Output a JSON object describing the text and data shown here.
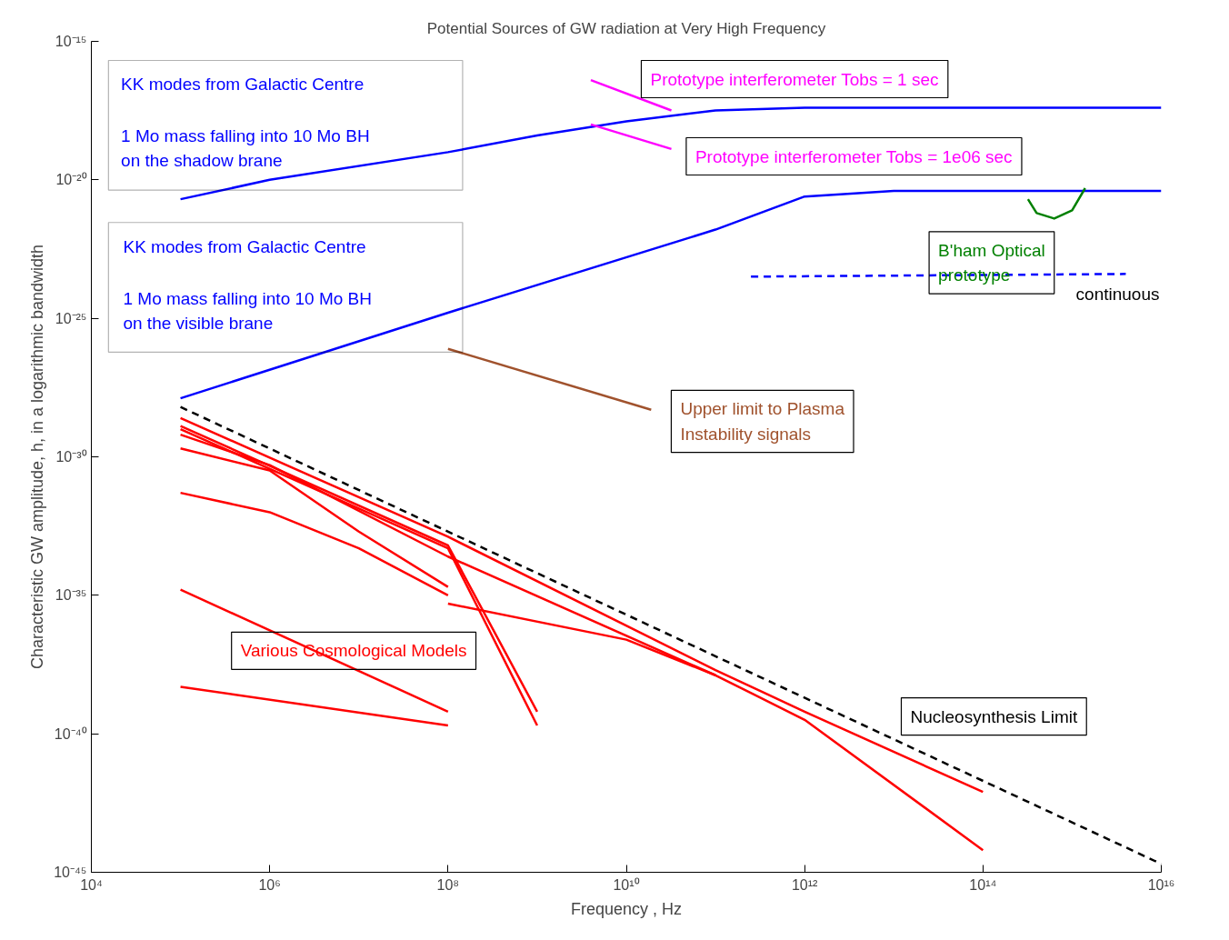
{
  "chart_data": {
    "type": "line",
    "title": "Potential Sources of GW radiation at Very High Frequency",
    "xlabel": "Frequency , Hz",
    "ylabel": "Characteristic GW amplitude, h, in a logarithmic bandwidth",
    "log": "xy",
    "grid": false,
    "line_style": "solid",
    "marker": "none",
    "xlim": [
      10000.0,
      1e+16
    ],
    "ylim": [
      1e-45,
      1e-15
    ],
    "xticks": [
      {
        "value": 10000.0,
        "label": "10⁴"
      },
      {
        "value": 1000000.0,
        "label": "10⁶"
      },
      {
        "value": 100000000.0,
        "label": "10⁸"
      },
      {
        "value": 10000000000.0,
        "label": "10¹⁰"
      },
      {
        "value": 1000000000000.0,
        "label": "10¹²"
      },
      {
        "value": 100000000000000.0,
        "label": "10¹⁴"
      },
      {
        "value": 1e+16,
        "label": "10¹⁶"
      }
    ],
    "yticks": [
      {
        "value": 1e-45,
        "label": "10⁻⁴⁵"
      },
      {
        "value": 1e-40,
        "label": "10⁻⁴⁰"
      },
      {
        "value": 1e-35,
        "label": "10⁻³⁵"
      },
      {
        "value": 1e-30,
        "label": "10⁻³⁰"
      },
      {
        "value": 1e-25,
        "label": "10⁻²⁵"
      },
      {
        "value": 1e-20,
        "label": "10⁻²⁰"
      },
      {
        "value": 1e-15,
        "label": "10⁻¹⁵"
      }
    ],
    "series": [
      {
        "color": "#0000ff",
        "x": [
          100000.0,
          1000000.0,
          100000000.0,
          1000000000.0,
          10000000000.0,
          100000000000.0,
          1000000000000.0,
          1e+16
        ],
        "values": [
          2e-21,
          1e-20,
          1e-19,
          4e-19,
          1.3e-18,
          3.2e-18,
          4e-18,
          4e-18
        ]
      },
      {
        "color": "#0000ff",
        "x": [
          100000.0,
          100000000.0,
          100000000000.0,
          1000000000000.0,
          10000000000000.0,
          1e+16
        ],
        "values": [
          1.3e-28,
          1.6e-25,
          1.6e-22,
          2.5e-21,
          4e-21,
          4e-21
        ]
      },
      {
        "color": "#0000ff",
        "line_style": "dashed",
        "x": [
          250000000000.0,
          4000000000000000.0
        ],
        "values": [
          3.2e-24,
          4e-24
        ]
      },
      {
        "color": "#ff00ff",
        "x": [
          4000000000.0,
          32000000000.0
        ],
        "values": [
          4e-17,
          3.2e-18
        ]
      },
      {
        "color": "#ff00ff",
        "x": [
          4000000000.0,
          32000000000.0
        ],
        "values": [
          1e-18,
          1.3e-19
        ]
      },
      {
        "color": "#008000",
        "x": [
          320000000000000.0,
          400000000000000.0,
          630000000000000.0,
          1000000000000000.0,
          1400000000000000.0
        ],
        "values": [
          2e-21,
          6.3e-22,
          4e-22,
          7.9e-22,
          5e-21
        ]
      },
      {
        "color": "#a0522d",
        "x": [
          100000000.0,
          19000000000.0
        ],
        "values": [
          7.9e-27,
          5e-29
        ]
      },
      {
        "color": "#000000",
        "line_style": "dashed",
        "x": [
          100000.0,
          1e+16
        ],
        "values": [
          6.3e-29,
          2e-45
        ]
      },
      {
        "color": "#ff0000",
        "x": [
          100000.0,
          100000000.0,
          100000000000.0,
          1000000000000.0,
          100000000000000.0
        ],
        "values": [
          2.5e-29,
          1.3e-33,
          2e-38,
          6.3e-40,
          7.9e-43
        ]
      },
      {
        "color": "#ff0000",
        "x": [
          100000.0,
          100000000.0,
          1000000000.0
        ],
        "values": [
          1.3e-29,
          6.3e-34,
          6.3e-40
        ]
      },
      {
        "color": "#ff0000",
        "x": [
          100000.0,
          100000000.0,
          1000000000.0
        ],
        "values": [
          1e-29,
          5e-34,
          2e-40
        ]
      },
      {
        "color": "#ff0000",
        "x": [
          100000.0,
          1000000.0,
          100000000.0,
          100000000000.0,
          1000000000000.0,
          100000000000000.0
        ],
        "values": [
          6.3e-30,
          5e-31,
          2.5e-34,
          1.3e-38,
          3.2e-40,
          6.3e-45
        ]
      },
      {
        "color": "#ff0000",
        "x": [
          100000.0,
          1000000.0,
          10000000.0,
          100000000.0
        ],
        "values": [
          2e-30,
          3.2e-31,
          2e-33,
          2e-35
        ]
      },
      {
        "color": "#ff0000",
        "x": [
          100000.0,
          1000000.0,
          10000000.0,
          100000000.0
        ],
        "values": [
          5e-32,
          1e-32,
          5e-34,
          1e-35
        ]
      },
      {
        "color": "#ff0000",
        "x": [
          100000000.0,
          10000000000.0,
          100000000000.0
        ],
        "values": [
          5e-36,
          2.5e-37,
          1.3e-38
        ]
      },
      {
        "color": "#ff0000",
        "x": [
          100000.0,
          100000000.0
        ],
        "values": [
          1.6e-35,
          6.3e-40
        ]
      },
      {
        "color": "#ff0000",
        "x": [
          100000.0,
          100000000.0
        ],
        "values": [
          5e-39,
          2e-40
        ]
      }
    ],
    "annotations": [
      "KK modes from Galactic Centre",
      "1 Mo mass falling into 10 Mo BH\non the shadow brane",
      "KK modes from Galactic Centre",
      "1 Mo mass falling into 10 Mo BH\non the visible brane",
      "Prototype interferometer Tobs = 1 sec",
      "Prototype interferometer Tobs = 1e06 sec",
      "B'ham Optical\nprototype",
      "continuous",
      "Upper limit to Plasma\nInstability signals",
      "Various Cosmological Models",
      "Nucleosynthesis Limit"
    ]
  }
}
